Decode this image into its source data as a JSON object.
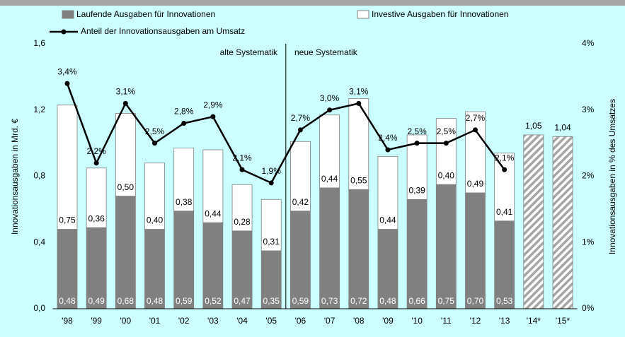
{
  "chart_data": {
    "type": "bar",
    "categories": [
      "'98",
      "'99",
      "'00",
      "'01",
      "'02",
      "'03",
      "'04",
      "'05",
      "'06",
      "'07",
      "'08",
      "'09",
      "'10",
      "'11",
      "'12",
      "'13",
      "'14*",
      "'15*"
    ],
    "stacked": true,
    "series": [
      {
        "name": "Laufende Ausgaben für Innovationen",
        "type": "bar",
        "color": "#808080",
        "values": [
          0.48,
          0.49,
          0.68,
          0.48,
          0.59,
          0.52,
          0.47,
          0.35,
          0.59,
          0.73,
          0.72,
          0.48,
          0.66,
          0.75,
          0.7,
          0.53,
          null,
          null
        ],
        "value_labels": [
          "0,48",
          "0,49",
          "0,68",
          "0,48",
          "0,59",
          "0,52",
          "0,47",
          "0,35",
          "0,59",
          "0,73",
          "0,72",
          "0,48",
          "0,66",
          "0,75",
          "0,70",
          "0,53",
          null,
          null
        ]
      },
      {
        "name": "Investive Ausgaben für Innovationen",
        "type": "bar",
        "color": "#ffffff",
        "values": [
          0.75,
          0.36,
          0.5,
          0.4,
          0.38,
          0.44,
          0.28,
          0.31,
          0.42,
          0.44,
          0.55,
          0.44,
          0.39,
          0.4,
          0.49,
          0.41,
          null,
          null
        ],
        "value_labels": [
          "0,75",
          "0,36",
          "0,50",
          "0,40",
          "0,38",
          "0,44",
          "0,28",
          "0,31",
          "0,42",
          "0,44",
          "0,55",
          "0,44",
          "0,39",
          "0,40",
          "0,49",
          "0,41",
          null,
          null
        ]
      },
      {
        "type": "bar",
        "color": "#a6a6a6",
        "pattern": "hatch",
        "values": [
          null,
          null,
          null,
          null,
          null,
          null,
          null,
          null,
          null,
          null,
          null,
          null,
          null,
          null,
          null,
          null,
          1.05,
          1.04
        ],
        "value_labels": [
          null,
          null,
          null,
          null,
          null,
          null,
          null,
          null,
          null,
          null,
          null,
          null,
          null,
          null,
          null,
          null,
          "1,05",
          "1,04"
        ]
      },
      {
        "name": "Anteil der Innovationsausgaben am Umsatz",
        "type": "line",
        "axis": "y2",
        "color": "#000000",
        "values": [
          3.4,
          2.2,
          3.1,
          2.5,
          2.8,
          2.9,
          2.1,
          1.9,
          2.7,
          3.0,
          3.1,
          2.4,
          2.5,
          2.5,
          2.7,
          2.1,
          null,
          null
        ],
        "value_labels": [
          "3,4%",
          "2,2%",
          "3,1%",
          "2,5%",
          "2,8%",
          "2,9%",
          "2,1%",
          "1,9%",
          "2,7%",
          "3,0%",
          "3,1%",
          "2,4%",
          "2,5%",
          "2,5%",
          "2,7%",
          "2,1%",
          null,
          null
        ]
      }
    ],
    "ylim": [
      0,
      1.6
    ],
    "yticks": [
      {
        "value": 0,
        "label": "0,0"
      },
      {
        "value": 0.4,
        "label": "0,4"
      },
      {
        "value": 0.8,
        "label": "0,8"
      },
      {
        "value": 1.2,
        "label": "1,2"
      },
      {
        "value": 1.6,
        "label": "1,6"
      }
    ],
    "y2lim": [
      0,
      4
    ],
    "y2ticks": [
      {
        "value": 0,
        "label": "0%"
      },
      {
        "value": 1,
        "label": "1%"
      },
      {
        "value": 2,
        "label": "2%"
      },
      {
        "value": 3,
        "label": "3%"
      },
      {
        "value": 4,
        "label": "4%"
      }
    ],
    "ylabel": "Innovationsausgaben in Mrd. €",
    "y2label": "Innovationsausgaben in % des Umsatzes",
    "annotations": [
      "alte Systematik",
      "neue Systematik"
    ]
  }
}
